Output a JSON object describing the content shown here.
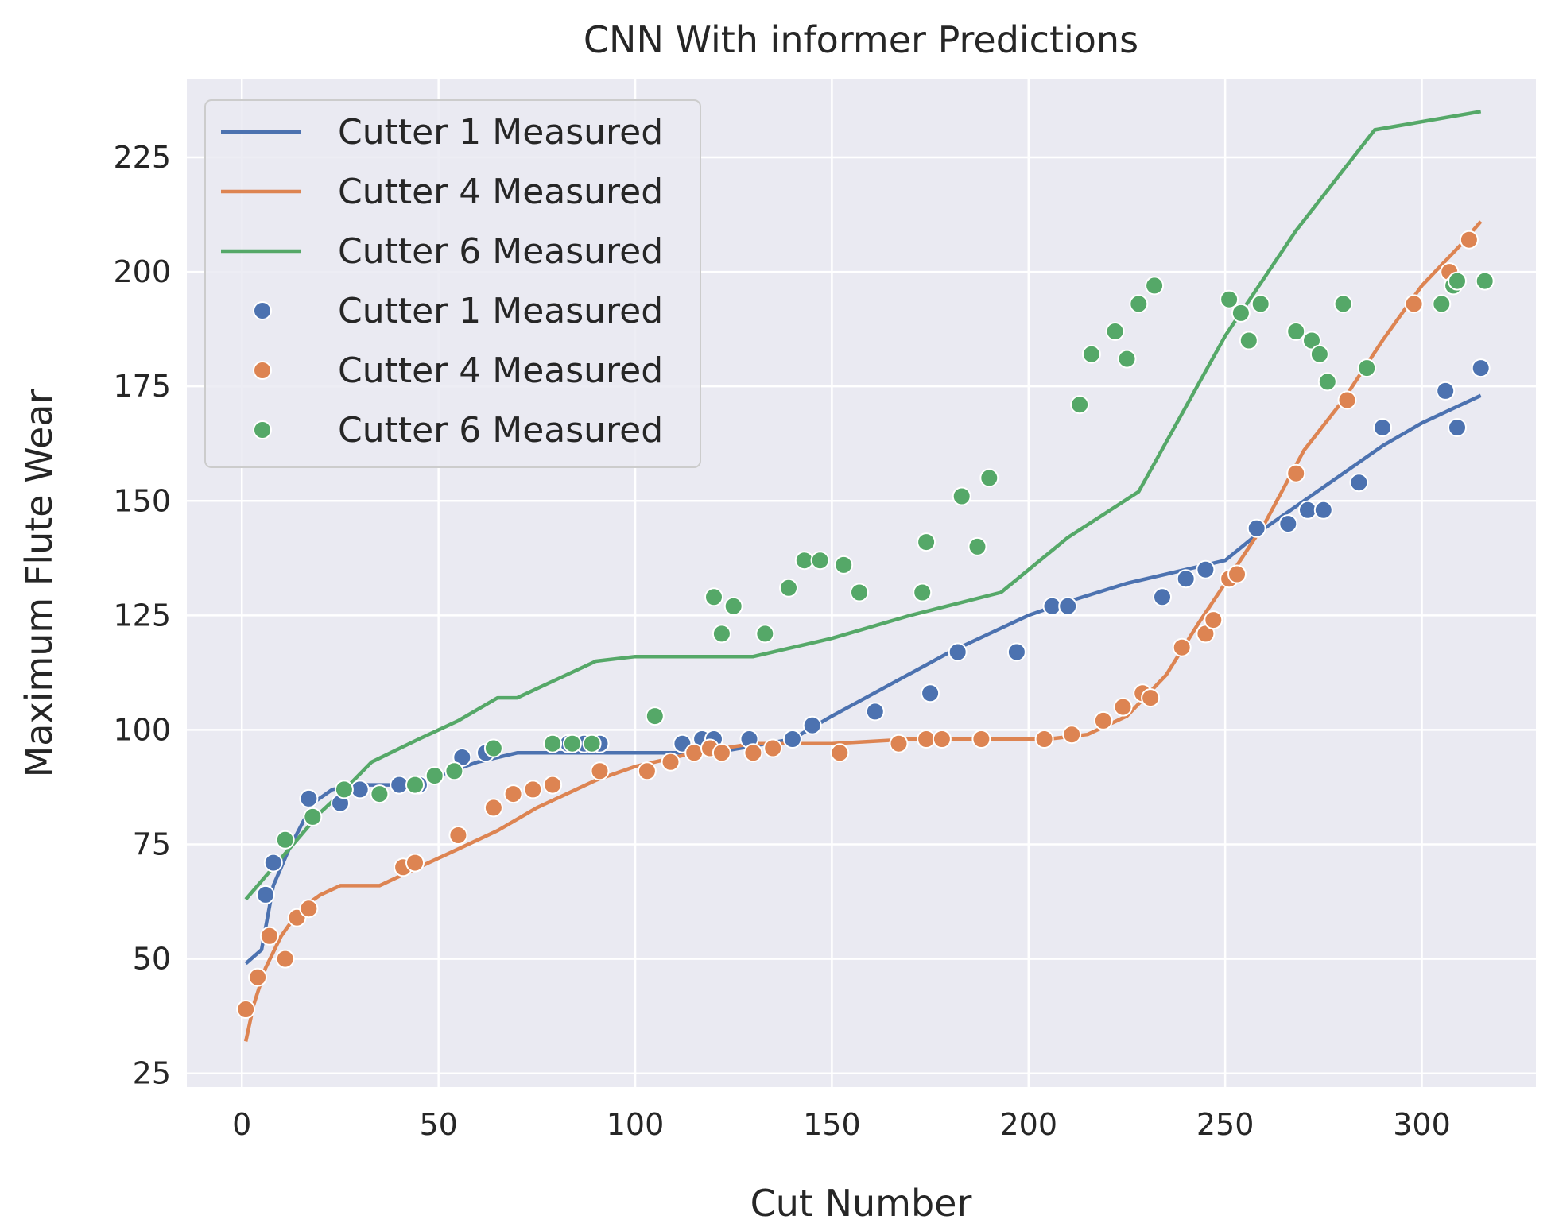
{
  "chart_data": {
    "type": "line+scatter",
    "title": "CNN With informer Predictions",
    "xlabel": "Cut Number",
    "ylabel": "Maximum Flute Wear",
    "xlim": [
      -14,
      329
    ],
    "ylim": [
      22,
      242
    ],
    "xticks": [
      0,
      50,
      100,
      150,
      200,
      250,
      300
    ],
    "yticks": [
      25,
      50,
      75,
      100,
      125,
      150,
      175,
      200,
      225
    ],
    "grid": true,
    "legend_position": "top-left",
    "lines": [
      {
        "name": "Cutter 1 Measured",
        "color": "#4c72b0",
        "points": [
          [
            1,
            49
          ],
          [
            5,
            52
          ],
          [
            8,
            66
          ],
          [
            12,
            74
          ],
          [
            18,
            84
          ],
          [
            23,
            87
          ],
          [
            30,
            88
          ],
          [
            40,
            88
          ],
          [
            50,
            90
          ],
          [
            60,
            93
          ],
          [
            70,
            95
          ],
          [
            90,
            95
          ],
          [
            120,
            95
          ],
          [
            140,
            98
          ],
          [
            150,
            103
          ],
          [
            165,
            110
          ],
          [
            180,
            117
          ],
          [
            200,
            125
          ],
          [
            210,
            128
          ],
          [
            225,
            132
          ],
          [
            240,
            135
          ],
          [
            250,
            137
          ],
          [
            260,
            144
          ],
          [
            270,
            150
          ],
          [
            280,
            156
          ],
          [
            290,
            162
          ],
          [
            300,
            167
          ],
          [
            315,
            173
          ]
        ]
      },
      {
        "name": "Cutter 4 Measured",
        "color": "#dd8452",
        "points": [
          [
            1,
            32
          ],
          [
            3,
            40
          ],
          [
            6,
            48
          ],
          [
            10,
            55
          ],
          [
            15,
            61
          ],
          [
            20,
            64
          ],
          [
            25,
            66
          ],
          [
            35,
            66
          ],
          [
            45,
            70
          ],
          [
            55,
            74
          ],
          [
            65,
            78
          ],
          [
            75,
            83
          ],
          [
            90,
            89
          ],
          [
            100,
            92
          ],
          [
            115,
            95
          ],
          [
            130,
            97
          ],
          [
            150,
            97
          ],
          [
            170,
            98
          ],
          [
            205,
            98
          ],
          [
            215,
            99
          ],
          [
            225,
            103
          ],
          [
            235,
            112
          ],
          [
            243,
            123
          ],
          [
            250,
            132
          ],
          [
            260,
            145
          ],
          [
            270,
            161
          ],
          [
            280,
            172
          ],
          [
            290,
            185
          ],
          [
            300,
            197
          ],
          [
            310,
            206
          ],
          [
            315,
            211
          ]
        ]
      },
      {
        "name": "Cutter 6 Measured",
        "color": "#55a868",
        "points": [
          [
            1,
            63
          ],
          [
            8,
            70
          ],
          [
            15,
            77
          ],
          [
            20,
            82
          ],
          [
            25,
            86
          ],
          [
            33,
            93
          ],
          [
            45,
            98
          ],
          [
            55,
            102
          ],
          [
            65,
            107
          ],
          [
            70,
            107
          ],
          [
            80,
            111
          ],
          [
            90,
            115
          ],
          [
            100,
            116
          ],
          [
            110,
            116
          ],
          [
            130,
            116
          ],
          [
            150,
            120
          ],
          [
            170,
            125
          ],
          [
            193,
            130
          ],
          [
            210,
            142
          ],
          [
            228,
            152
          ],
          [
            250,
            186
          ],
          [
            268,
            209
          ],
          [
            288,
            231
          ],
          [
            315,
            235
          ]
        ]
      }
    ],
    "scatter": [
      {
        "name": "Cutter 1 Measured",
        "color": "#4c72b0",
        "points": [
          [
            6,
            64
          ],
          [
            8,
            71
          ],
          [
            17,
            85
          ],
          [
            25,
            84
          ],
          [
            30,
            87
          ],
          [
            40,
            88
          ],
          [
            45,
            88
          ],
          [
            56,
            94
          ],
          [
            62,
            95
          ],
          [
            83,
            97
          ],
          [
            87,
            97
          ],
          [
            91,
            97
          ],
          [
            112,
            97
          ],
          [
            117,
            98
          ],
          [
            120,
            98
          ],
          [
            129,
            98
          ],
          [
            140,
            98
          ],
          [
            145,
            101
          ],
          [
            161,
            104
          ],
          [
            175,
            108
          ],
          [
            182,
            117
          ],
          [
            197,
            117
          ],
          [
            206,
            127
          ],
          [
            210,
            127
          ],
          [
            234,
            129
          ],
          [
            240,
            133
          ],
          [
            245,
            135
          ],
          [
            258,
            144
          ],
          [
            266,
            145
          ],
          [
            271,
            148
          ],
          [
            275,
            148
          ],
          [
            284,
            154
          ],
          [
            290,
            166
          ],
          [
            306,
            174
          ],
          [
            309,
            166
          ],
          [
            315,
            179
          ]
        ]
      },
      {
        "name": "Cutter 4 Measured",
        "color": "#dd8452",
        "points": [
          [
            1,
            39
          ],
          [
            4,
            46
          ],
          [
            7,
            55
          ],
          [
            11,
            50
          ],
          [
            14,
            59
          ],
          [
            17,
            61
          ],
          [
            41,
            70
          ],
          [
            44,
            71
          ],
          [
            55,
            77
          ],
          [
            64,
            83
          ],
          [
            69,
            86
          ],
          [
            74,
            87
          ],
          [
            79,
            88
          ],
          [
            91,
            91
          ],
          [
            103,
            91
          ],
          [
            109,
            93
          ],
          [
            115,
            95
          ],
          [
            119,
            96
          ],
          [
            122,
            95
          ],
          [
            130,
            95
          ],
          [
            135,
            96
          ],
          [
            152,
            95
          ],
          [
            167,
            97
          ],
          [
            174,
            98
          ],
          [
            178,
            98
          ],
          [
            188,
            98
          ],
          [
            204,
            98
          ],
          [
            211,
            99
          ],
          [
            219,
            102
          ],
          [
            224,
            105
          ],
          [
            229,
            108
          ],
          [
            231,
            107
          ],
          [
            239,
            118
          ],
          [
            245,
            121
          ],
          [
            247,
            124
          ],
          [
            251,
            133
          ],
          [
            253,
            134
          ],
          [
            268,
            156
          ],
          [
            281,
            172
          ],
          [
            298,
            193
          ],
          [
            307,
            200
          ],
          [
            312,
            207
          ]
        ]
      },
      {
        "name": "Cutter 6 Measured",
        "color": "#55a868",
        "points": [
          [
            11,
            76
          ],
          [
            18,
            81
          ],
          [
            26,
            87
          ],
          [
            35,
            86
          ],
          [
            44,
            88
          ],
          [
            49,
            90
          ],
          [
            54,
            91
          ],
          [
            64,
            96
          ],
          [
            79,
            97
          ],
          [
            84,
            97
          ],
          [
            89,
            97
          ],
          [
            105,
            103
          ],
          [
            120,
            129
          ],
          [
            122,
            121
          ],
          [
            125,
            127
          ],
          [
            133,
            121
          ],
          [
            139,
            131
          ],
          [
            143,
            137
          ],
          [
            147,
            137
          ],
          [
            153,
            136
          ],
          [
            157,
            130
          ],
          [
            173,
            130
          ],
          [
            174,
            141
          ],
          [
            183,
            151
          ],
          [
            187,
            140
          ],
          [
            190,
            155
          ],
          [
            213,
            171
          ],
          [
            216,
            182
          ],
          [
            222,
            187
          ],
          [
            225,
            181
          ],
          [
            228,
            193
          ],
          [
            232,
            197
          ],
          [
            251,
            194
          ],
          [
            254,
            191
          ],
          [
            256,
            185
          ],
          [
            259,
            193
          ],
          [
            268,
            187
          ],
          [
            272,
            185
          ],
          [
            274,
            182
          ],
          [
            276,
            176
          ],
          [
            280,
            193
          ],
          [
            286,
            179
          ],
          [
            305,
            193
          ],
          [
            308,
            197
          ],
          [
            309,
            198
          ],
          [
            316,
            198
          ]
        ]
      }
    ]
  }
}
